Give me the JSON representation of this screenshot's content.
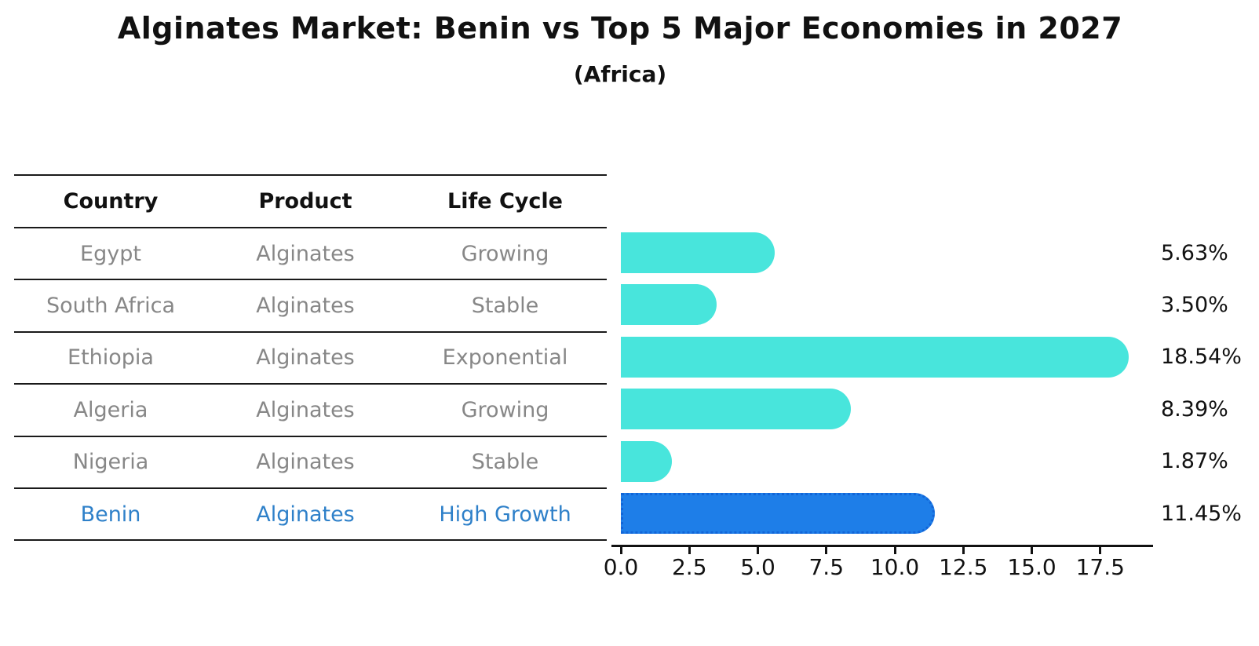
{
  "header": {
    "title": "Alginates Market: Benin vs Top 5 Major Economies in 2027",
    "subtitle": "(Africa)"
  },
  "table": {
    "headers": [
      "Country",
      "Product",
      "Life Cycle"
    ],
    "rows": [
      {
        "country": "Egypt",
        "product": "Alginates",
        "life_cycle": "Growing",
        "highlighted": false
      },
      {
        "country": "South Africa",
        "product": "Alginates",
        "life_cycle": "Stable",
        "highlighted": false
      },
      {
        "country": "Ethiopia",
        "product": "Alginates",
        "life_cycle": "Exponential",
        "highlighted": false
      },
      {
        "country": "Algeria",
        "product": "Alginates",
        "life_cycle": "Growing",
        "highlighted": false
      },
      {
        "country": "Nigeria",
        "product": "Alginates",
        "life_cycle": "Stable",
        "highlighted": false
      },
      {
        "country": "Benin",
        "product": "Alginates",
        "life_cycle": "High Growth",
        "highlighted": true
      }
    ]
  },
  "chart_data": {
    "type": "bar",
    "orientation": "horizontal",
    "title": "Alginates Market: Benin vs Top 5 Major Economies in 2027 (Africa)",
    "categories": [
      "Egypt",
      "South Africa",
      "Ethiopia",
      "Algeria",
      "Nigeria",
      "Benin"
    ],
    "values": [
      5.63,
      3.5,
      18.54,
      8.39,
      1.87,
      11.45
    ],
    "value_labels": [
      "5.63%",
      "3.50%",
      "18.54%",
      "8.39%",
      "1.87%",
      "11.45%"
    ],
    "x_tick_labels": [
      "0.0",
      "2.5",
      "5.0",
      "7.5",
      "10.0",
      "12.5",
      "15.0",
      "17.5"
    ],
    "x_tick_values": [
      0,
      2.5,
      5,
      7.5,
      10,
      12.5,
      15,
      17.5
    ],
    "xlim": [
      0,
      19.4
    ],
    "grid": false,
    "legend": "none",
    "highlight_index": 5,
    "unit": "%"
  },
  "colors": {
    "bar_default": "#48e5dc",
    "bar_highlight": "#1e7ee8",
    "bar_highlight_edge": "#1265d8",
    "row_text": "#878787",
    "highlight_text": "#2e80c9",
    "text": "#111111"
  }
}
